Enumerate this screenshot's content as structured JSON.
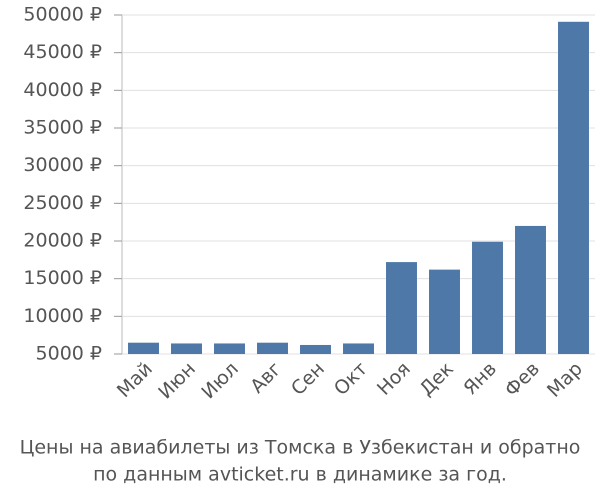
{
  "chart_data": {
    "type": "bar",
    "title": [
      "Цены на авиабилеты из Томска в Узбекистан и обратно",
      "по данным avticket.ru в динамике за год."
    ],
    "categories": [
      "Май",
      "Июн",
      "Июл",
      "Авг",
      "Сен",
      "Окт",
      "Ноя",
      "Дек",
      "Янв",
      "Фев",
      "Мар"
    ],
    "values": [
      6500,
      6400,
      6400,
      6500,
      6200,
      6400,
      17200,
      16200,
      19900,
      22000,
      49100
    ],
    "color": "#4e78a8",
    "ylim": [
      5000,
      50000
    ],
    "yticks": [
      {
        "value": 5000,
        "label": "5000 ₽"
      },
      {
        "value": 10000,
        "label": "10000 ₽"
      },
      {
        "value": 15000,
        "label": "15000 ₽"
      },
      {
        "value": 20000,
        "label": "20000 ₽"
      },
      {
        "value": 25000,
        "label": "25000 ₽"
      },
      {
        "value": 30000,
        "label": "30000 ₽"
      },
      {
        "value": 35000,
        "label": "35000 ₽"
      },
      {
        "value": 40000,
        "label": "40000 ₽"
      },
      {
        "value": 45000,
        "label": "45000 ₽"
      },
      {
        "value": 50000,
        "label": "50000 ₽"
      }
    ],
    "grid": true
  }
}
